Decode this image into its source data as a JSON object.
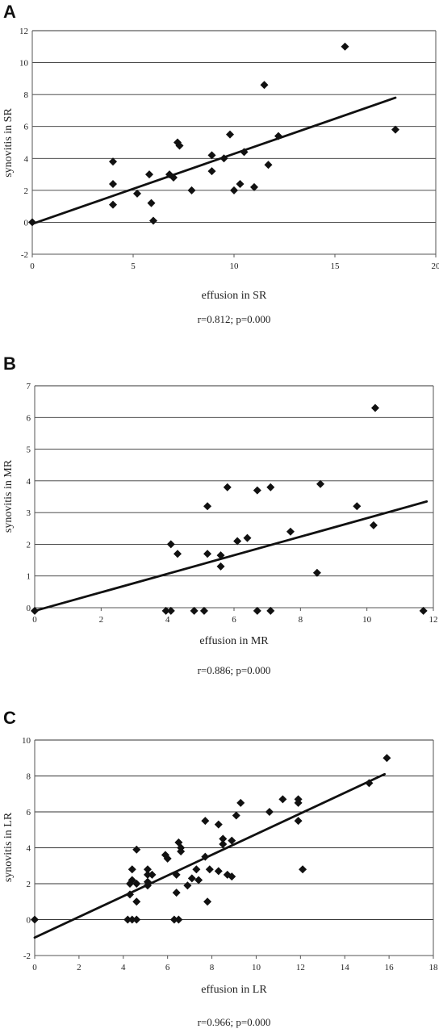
{
  "chart_data": [
    {
      "type": "scatter",
      "panel": "A",
      "xlabel": "effusion in SR",
      "ylabel": "synovitis in SR",
      "stat": "r=0.812; p=0.000",
      "xlim": [
        0,
        20
      ],
      "ylim": [
        -2,
        12
      ],
      "xticks": [
        0,
        5,
        10,
        15,
        20
      ],
      "yticks": [
        -2,
        0,
        2,
        4,
        6,
        8,
        10,
        12
      ],
      "trendline": {
        "x": [
          0,
          18
        ],
        "y": [
          -0.1,
          7.8
        ]
      },
      "points": [
        [
          0,
          0
        ],
        [
          4,
          3.8
        ],
        [
          4,
          2.4
        ],
        [
          4,
          1.1
        ],
        [
          5.2,
          1.8
        ],
        [
          5.8,
          3
        ],
        [
          5.9,
          1.2
        ],
        [
          6,
          0.1
        ],
        [
          6.8,
          3
        ],
        [
          7,
          2.8
        ],
        [
          7.2,
          5
        ],
        [
          7.3,
          4.8
        ],
        [
          7.9,
          2
        ],
        [
          8.9,
          4.2
        ],
        [
          8.9,
          3.2
        ],
        [
          9.5,
          4
        ],
        [
          9.8,
          5.5
        ],
        [
          10,
          2
        ],
        [
          10.3,
          2.4
        ],
        [
          10.5,
          4.4
        ],
        [
          11,
          2.2
        ],
        [
          11.5,
          8.6
        ],
        [
          11.7,
          3.6
        ],
        [
          12.2,
          5.4
        ],
        [
          15.5,
          11
        ],
        [
          18,
          5.8
        ]
      ]
    },
    {
      "type": "scatter",
      "panel": "B",
      "xlabel": "effusion in MR",
      "ylabel": "synovitis in MR",
      "stat": "r=0.886; p=0.000",
      "xlim": [
        0,
        12
      ],
      "ylim": [
        0,
        7
      ],
      "xticks": [
        0,
        2,
        4,
        6,
        8,
        10,
        12
      ],
      "yticks": [
        0,
        1,
        2,
        3,
        4,
        5,
        6,
        7
      ],
      "trendline": {
        "x": [
          0,
          11.8
        ],
        "y": [
          -0.1,
          3.35
        ]
      },
      "points": [
        [
          0,
          -0.1
        ],
        [
          3.95,
          -0.1
        ],
        [
          4.1,
          -0.1
        ],
        [
          4.1,
          2
        ],
        [
          4.3,
          1.7
        ],
        [
          4.8,
          -0.1
        ],
        [
          5.1,
          -0.1
        ],
        [
          5.2,
          3.2
        ],
        [
          5.2,
          1.7
        ],
        [
          5.6,
          1.3
        ],
        [
          5.6,
          1.65
        ],
        [
          5.8,
          3.8
        ],
        [
          6.1,
          2.1
        ],
        [
          6.4,
          2.2
        ],
        [
          6.7,
          3.7
        ],
        [
          6.7,
          -0.1
        ],
        [
          7.1,
          3.8
        ],
        [
          7.1,
          -0.1
        ],
        [
          7.7,
          2.4
        ],
        [
          8.5,
          1.1
        ],
        [
          8.6,
          3.9
        ],
        [
          9.7,
          3.2
        ],
        [
          10.2,
          2.6
        ],
        [
          10.25,
          6.3
        ],
        [
          11.7,
          -0.1
        ]
      ]
    },
    {
      "type": "scatter",
      "panel": "C",
      "xlabel": "effusion in LR",
      "ylabel": "synovitis in LR",
      "stat": "r=0.966; p=0.000",
      "xlim": [
        0,
        18
      ],
      "ylim": [
        -2,
        10
      ],
      "xticks": [
        0,
        2,
        4,
        6,
        8,
        10,
        12,
        14,
        16,
        18
      ],
      "yticks": [
        -2,
        0,
        2,
        4,
        6,
        8,
        10
      ],
      "trendline": {
        "x": [
          0,
          15.8
        ],
        "y": [
          -1,
          8.1
        ]
      },
      "points": [
        [
          0,
          0
        ],
        [
          4.2,
          0
        ],
        [
          4.3,
          2
        ],
        [
          4.3,
          1.4
        ],
        [
          4.4,
          2.2
        ],
        [
          4.4,
          2.8
        ],
        [
          4.4,
          0
        ],
        [
          4.6,
          3.9
        ],
        [
          4.6,
          2
        ],
        [
          4.6,
          1
        ],
        [
          4.6,
          0
        ],
        [
          5.1,
          2.8
        ],
        [
          5.1,
          2.5
        ],
        [
          5.1,
          1.9
        ],
        [
          5.1,
          2.1
        ],
        [
          5.3,
          2.5
        ],
        [
          5.9,
          3.6
        ],
        [
          6,
          3.4
        ],
        [
          6.3,
          0
        ],
        [
          6.4,
          1.5
        ],
        [
          6.4,
          2.5
        ],
        [
          6.5,
          4.3
        ],
        [
          6.5,
          0
        ],
        [
          6.6,
          3.8
        ],
        [
          6.6,
          4
        ],
        [
          6.9,
          1.9
        ],
        [
          7.1,
          2.3
        ],
        [
          7.3,
          2.8
        ],
        [
          7.4,
          2.2
        ],
        [
          7.7,
          3.5
        ],
        [
          7.7,
          5.5
        ],
        [
          7.8,
          1
        ],
        [
          7.9,
          2.8
        ],
        [
          8.3,
          2.7
        ],
        [
          8.3,
          5.3
        ],
        [
          8.5,
          4.5
        ],
        [
          8.5,
          4.2
        ],
        [
          8.7,
          2.5
        ],
        [
          8.9,
          2.4
        ],
        [
          8.9,
          4.4
        ],
        [
          9.1,
          5.8
        ],
        [
          9.3,
          6.5
        ],
        [
          10.6,
          6
        ],
        [
          11.2,
          6.7
        ],
        [
          11.9,
          6.5
        ],
        [
          11.9,
          6.7
        ],
        [
          11.9,
          5.5
        ],
        [
          12.1,
          2.8
        ],
        [
          15.1,
          7.6
        ],
        [
          15.9,
          9
        ]
      ]
    }
  ]
}
